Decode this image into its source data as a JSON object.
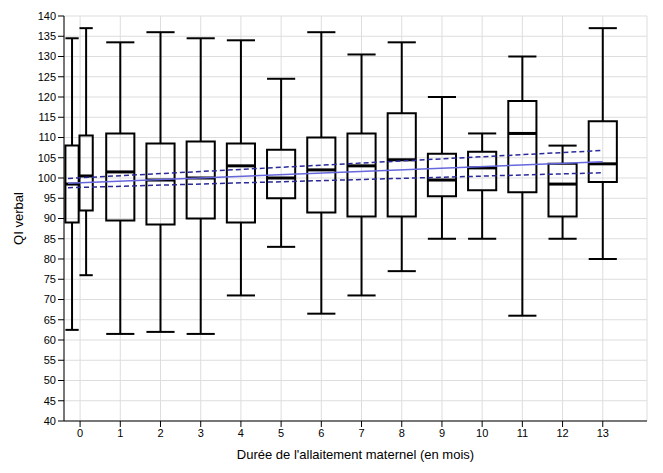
{
  "chart_data": {
    "type": "boxplot",
    "x_label": "Durée de l'allaitement maternel (en mois)",
    "y_label": "QI verbal",
    "xlim": [
      -0.4,
      14.1
    ],
    "xticks": [
      0,
      1,
      2,
      3,
      4,
      5,
      6,
      7,
      8,
      9,
      10,
      11,
      12,
      13
    ],
    "ylim": [
      40,
      140
    ],
    "yticks": [
      40,
      45,
      50,
      55,
      60,
      65,
      70,
      75,
      80,
      85,
      90,
      95,
      100,
      105,
      110,
      115,
      120,
      125,
      130,
      135,
      140
    ],
    "grid": true,
    "color": "#000000",
    "boxes": [
      {
        "x": -0.2,
        "min": 62.5,
        "q1": 89,
        "median": 98.5,
        "q3": 108,
        "max": 134.5
      },
      {
        "x": 0.15,
        "min": 76,
        "q1": 92,
        "median": 100.5,
        "q3": 110.5,
        "max": 137
      },
      {
        "x": 1,
        "min": 61.5,
        "q1": 89.5,
        "median": 101.5,
        "q3": 111,
        "max": 133.5
      },
      {
        "x": 2,
        "min": 62,
        "q1": 88.5,
        "median": 99.5,
        "q3": 108.5,
        "max": 136
      },
      {
        "x": 3,
        "min": 61.5,
        "q1": 90,
        "median": 100,
        "q3": 109,
        "max": 134.5
      },
      {
        "x": 4,
        "min": 71,
        "q1": 89,
        "median": 103,
        "q3": 108.5,
        "max": 134
      },
      {
        "x": 5,
        "min": 83,
        "q1": 95,
        "median": 100,
        "q3": 107,
        "max": 124.5
      },
      {
        "x": 6,
        "min": 66.5,
        "q1": 91.5,
        "median": 102,
        "q3": 110,
        "max": 136
      },
      {
        "x": 7,
        "min": 71,
        "q1": 90.5,
        "median": 103,
        "q3": 111,
        "max": 130.5
      },
      {
        "x": 8,
        "min": 77,
        "q1": 90.5,
        "median": 104.5,
        "q3": 116,
        "max": 133.5
      },
      {
        "x": 9,
        "min": 85,
        "q1": 95.5,
        "median": 99.5,
        "q3": 106,
        "max": 120
      },
      {
        "x": 10,
        "min": 85,
        "q1": 97,
        "median": 102.5,
        "q3": 106.5,
        "max": 111
      },
      {
        "x": 11,
        "min": 66,
        "q1": 96.5,
        "median": 111,
        "q3": 119,
        "max": 130
      },
      {
        "x": 12,
        "min": 85,
        "q1": 90.5,
        "median": 98.5,
        "q3": 103.5,
        "max": 108
      },
      {
        "x": 13,
        "min": 80,
        "q1": 99,
        "median": 103.5,
        "q3": 114,
        "max": 137
      }
    ],
    "series": [
      {
        "type": "line",
        "color": "#6666dd",
        "line_style": "solid",
        "x": [
          -0.3,
          13
        ],
        "values": [
          98.7,
          104
        ]
      },
      {
        "type": "line",
        "color": "#2a2a99",
        "line_style": "dashed",
        "x": [
          -0.3,
          13
        ],
        "values": [
          99.9,
          106.8
        ]
      },
      {
        "type": "line",
        "color": "#2a2a99",
        "line_style": "dashed",
        "x": [
          -0.3,
          13
        ],
        "values": [
          97.6,
          101.3
        ]
      }
    ]
  }
}
